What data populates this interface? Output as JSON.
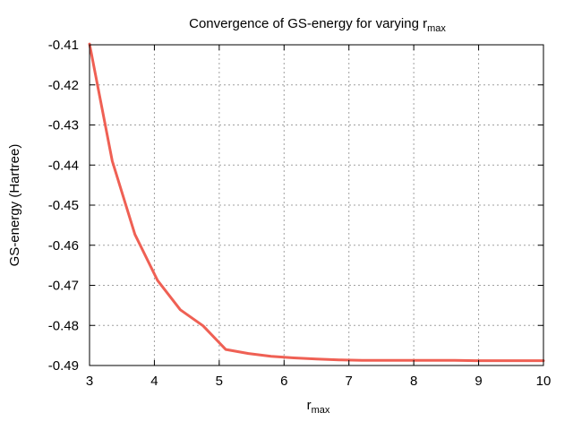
{
  "chart_data": {
    "type": "line",
    "title": {
      "main": "Convergence of GS-energy for varying r",
      "sub": "max"
    },
    "xlabel": {
      "main": "r",
      "sub": "max"
    },
    "ylabel": "GS-energy (Hartree)",
    "xlim": [
      3,
      10
    ],
    "ylim": [
      -0.49,
      -0.41
    ],
    "xticks": [
      3,
      4,
      5,
      6,
      7,
      8,
      9,
      10
    ],
    "yticks": [
      -0.41,
      -0.42,
      -0.43,
      -0.44,
      -0.45,
      -0.46,
      -0.47,
      -0.48,
      -0.49
    ],
    "xtick_labels": [
      "3",
      "4",
      "5",
      "6",
      "7",
      "8",
      "9",
      "10"
    ],
    "ytick_labels": [
      "-0.41",
      "-0.42",
      "-0.43",
      "-0.44",
      "-0.45",
      "-0.46",
      "-0.47",
      "-0.48",
      "-0.49"
    ],
    "grid": true,
    "legend": "none",
    "series": [
      {
        "color": "#ef6054",
        "x": [
          3.0,
          3.35,
          3.7,
          4.05,
          4.4,
          4.75,
          5.1,
          5.45,
          5.8,
          6.15,
          6.5,
          6.85,
          7.2,
          7.55,
          7.9,
          8.25,
          8.6,
          8.95,
          9.3,
          9.65,
          10.0
        ],
        "y": [
          -0.4098,
          -0.439,
          -0.4573,
          -0.4688,
          -0.4761,
          -0.4801,
          -0.486,
          -0.487,
          -0.4877,
          -0.4881,
          -0.4884,
          -0.4886,
          -0.4887,
          -0.4887,
          -0.4887,
          -0.4887,
          -0.4887,
          -0.4888,
          -0.4888,
          -0.4888,
          -0.4888
        ]
      }
    ]
  }
}
